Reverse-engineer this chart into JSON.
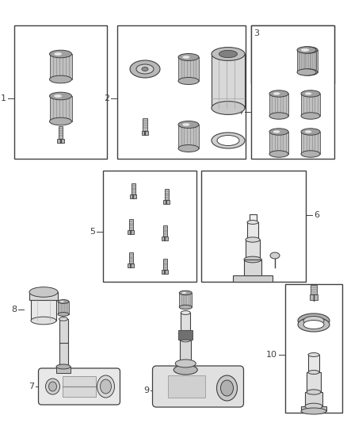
{
  "background_color": "#ffffff",
  "line_color": "#404040",
  "figsize": [
    4.38,
    5.33
  ],
  "dpi": 100
}
